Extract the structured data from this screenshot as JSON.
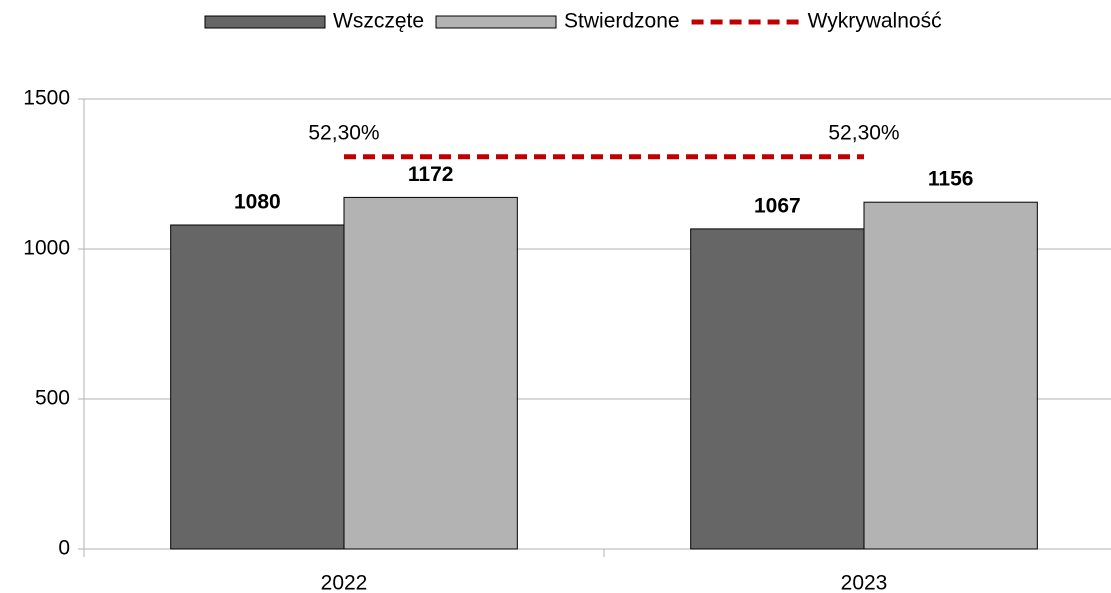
{
  "chart_data": {
    "type": "bar",
    "categories": [
      "2022",
      "2023"
    ],
    "series": [
      {
        "name": "Wszczęte",
        "type": "bar",
        "color": "#666666",
        "values": [
          1080,
          1067
        ]
      },
      {
        "name": "Stwierdzone",
        "type": "bar",
        "color": "#b3b3b3",
        "values": [
          1172,
          1156
        ]
      },
      {
        "name": "Wykrywalność",
        "type": "line",
        "axis": "y2",
        "color": "#c00000",
        "values": [
          52.3,
          52.3
        ],
        "value_labels": [
          "52,30%",
          "52,30%"
        ]
      }
    ],
    "ylim": [
      0,
      1500
    ],
    "yticks": [
      0,
      500,
      1000,
      1500
    ],
    "y2lim": [
      0,
      60
    ],
    "grid": true,
    "legend": "top"
  }
}
